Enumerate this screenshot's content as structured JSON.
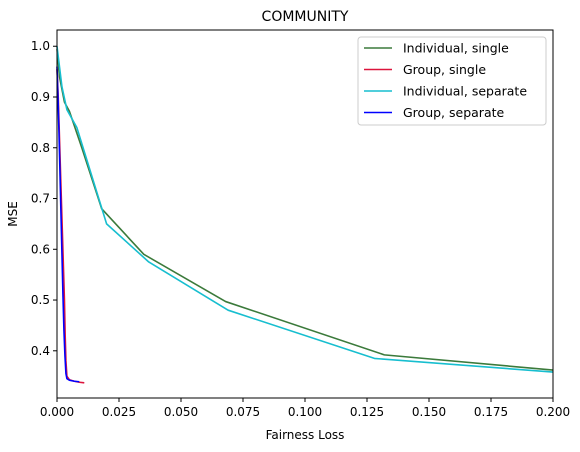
{
  "chart_data": {
    "type": "line",
    "title": "COMMUNITY",
    "xlabel": "Fairness Loss",
    "ylabel": "MSE",
    "xlim": [
      0,
      0.2
    ],
    "ylim": [
      0.307,
      1.032
    ],
    "xticks": [
      0.0,
      0.025,
      0.05,
      0.075,
      0.1,
      0.125,
      0.15,
      0.175,
      0.2
    ],
    "xtick_labels": [
      "0.000",
      "0.025",
      "0.050",
      "0.075",
      "0.100",
      "0.125",
      "0.150",
      "0.175",
      "0.200"
    ],
    "yticks": [
      0.4,
      0.5,
      0.6,
      0.7,
      0.8,
      0.9,
      1.0
    ],
    "ytick_labels": [
      "0.4",
      "0.5",
      "0.6",
      "0.7",
      "0.8",
      "0.9",
      "1.0"
    ],
    "legend_position": "top-right",
    "series": [
      {
        "name": "Individual, single",
        "color": "#3b7a3b",
        "x": [
          0.0,
          0.001,
          0.003,
          0.005,
          0.01,
          0.018,
          0.035,
          0.068,
          0.132,
          0.2
        ],
        "y": [
          0.995,
          0.94,
          0.89,
          0.872,
          0.8,
          0.68,
          0.59,
          0.497,
          0.392,
          0.362
        ]
      },
      {
        "name": "Group, single",
        "color": "#dc143c",
        "x": [
          0.0,
          0.0005,
          0.001,
          0.0015,
          0.002,
          0.0025,
          0.003,
          0.0033,
          0.0036,
          0.004,
          0.005,
          0.007,
          0.009,
          0.011
        ],
        "y": [
          0.955,
          0.9,
          0.82,
          0.74,
          0.66,
          0.58,
          0.5,
          0.43,
          0.38,
          0.35,
          0.343,
          0.34,
          0.338,
          0.337
        ]
      },
      {
        "name": "Individual, separate",
        "color": "#17becf",
        "x": [
          0.0,
          0.001,
          0.002,
          0.004,
          0.008,
          0.02,
          0.037,
          0.069,
          0.128,
          0.2
        ],
        "y": [
          1.0,
          0.96,
          0.92,
          0.875,
          0.84,
          0.65,
          0.575,
          0.48,
          0.385,
          0.358
        ]
      },
      {
        "name": "Group, separate",
        "color": "#0000ff",
        "x": [
          0.0,
          0.0004,
          0.0008,
          0.0012,
          0.0016,
          0.002,
          0.0024,
          0.0028,
          0.0032,
          0.0036,
          0.004,
          0.005,
          0.007,
          0.009
        ],
        "y": [
          0.96,
          0.9,
          0.83,
          0.75,
          0.67,
          0.59,
          0.51,
          0.44,
          0.39,
          0.355,
          0.345,
          0.342,
          0.34,
          0.339
        ]
      }
    ]
  }
}
